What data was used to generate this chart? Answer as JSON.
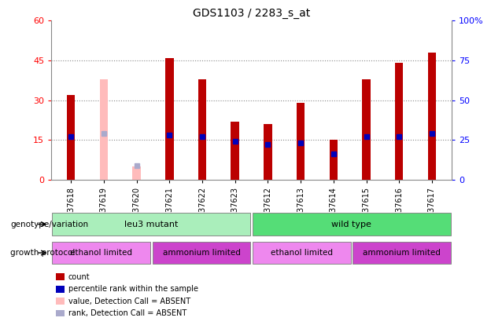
{
  "title": "GDS1103 / 2283_s_at",
  "samples": [
    "GSM37618",
    "GSM37619",
    "GSM37620",
    "GSM37621",
    "GSM37622",
    "GSM37623",
    "GSM37612",
    "GSM37613",
    "GSM37614",
    "GSM37615",
    "GSM37616",
    "GSM37617"
  ],
  "count_values": [
    32,
    0,
    0,
    46,
    38,
    22,
    21,
    29,
    15,
    38,
    44,
    48
  ],
  "percentile_values": [
    27,
    0,
    0,
    28,
    27,
    24,
    22,
    23,
    16,
    27,
    27,
    29
  ],
  "absent_value_values": [
    0,
    38,
    5,
    0,
    0,
    0,
    0,
    0,
    0,
    0,
    0,
    0
  ],
  "absent_rank_values": [
    0,
    29,
    9,
    0,
    0,
    0,
    0,
    0,
    0,
    0,
    0,
    0
  ],
  "is_absent": [
    false,
    true,
    true,
    false,
    false,
    false,
    false,
    false,
    false,
    false,
    false,
    false
  ],
  "ylim_left": [
    0,
    60
  ],
  "ylim_right": [
    0,
    100
  ],
  "yticks_left": [
    0,
    15,
    30,
    45,
    60
  ],
  "yticks_right": [
    0,
    25,
    50,
    75,
    100
  ],
  "yticklabels_right": [
    "0",
    "25",
    "50",
    "75",
    "100%"
  ],
  "bar_width": 0.25,
  "red_color": "#bb0000",
  "blue_color": "#0000bb",
  "absent_bar_color": "#ffbbbb",
  "absent_rank_color": "#aaaacc",
  "plot_bg": "#ffffff",
  "grid_color": "#888888",
  "leu3_color": "#aaeebb",
  "wildtype_color": "#55dd77",
  "ethanol_color": "#ee88ee",
  "ammonium_color": "#cc44cc",
  "genotype_groups": [
    {
      "label": "leu3 mutant",
      "start": 0,
      "end": 5
    },
    {
      "label": "wild type",
      "start": 6,
      "end": 11
    }
  ],
  "protocol_groups": [
    {
      "label": "ethanol limited",
      "start": 0,
      "end": 2,
      "color": "#ee88ee"
    },
    {
      "label": "ammonium limited",
      "start": 3,
      "end": 5,
      "color": "#cc44cc"
    },
    {
      "label": "ethanol limited",
      "start": 6,
      "end": 8,
      "color": "#ee88ee"
    },
    {
      "label": "ammonium limited",
      "start": 9,
      "end": 11,
      "color": "#cc44cc"
    }
  ]
}
